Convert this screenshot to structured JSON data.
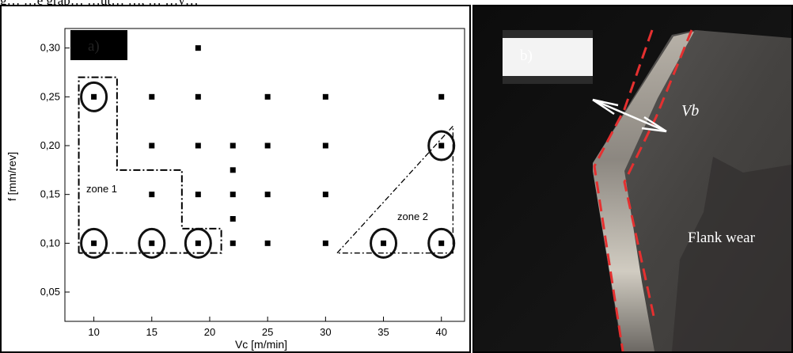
{
  "caption_fragment": "g… …e grap… …ut… …, … …y…",
  "panel_a": {
    "tag": "a)",
    "zone1_label": "zone 1",
    "zone2_label": "zone 2"
  },
  "panel_b": {
    "tag": "b)",
    "vb_label": "Vb",
    "flank_label": "Flank wear"
  },
  "chart_data": {
    "type": "scatter",
    "xlabel": "Vc [m/min]",
    "ylabel": "f [mm/rev]",
    "xlim": [
      7.5,
      42
    ],
    "ylim": [
      0.02,
      0.32
    ],
    "xticks": [
      10,
      15,
      20,
      25,
      30,
      35,
      40
    ],
    "xtick_labels": [
      "10",
      "15",
      "20",
      "25",
      "30",
      "35",
      "40"
    ],
    "yticks": [
      0.05,
      0.1,
      0.15,
      0.2,
      0.25,
      0.3
    ],
    "ytick_labels": [
      "0,05",
      "0,10",
      "0,15",
      "0,20",
      "0,25",
      "0,30"
    ],
    "grid": false,
    "points": [
      {
        "x": 10,
        "y": 0.25
      },
      {
        "x": 10,
        "y": 0.1
      },
      {
        "x": 15,
        "y": 0.25
      },
      {
        "x": 15,
        "y": 0.2
      },
      {
        "x": 15,
        "y": 0.15
      },
      {
        "x": 15,
        "y": 0.1
      },
      {
        "x": 19,
        "y": 0.3
      },
      {
        "x": 19,
        "y": 0.25
      },
      {
        "x": 19,
        "y": 0.2
      },
      {
        "x": 19,
        "y": 0.15
      },
      {
        "x": 19,
        "y": 0.1
      },
      {
        "x": 22,
        "y": 0.2
      },
      {
        "x": 22,
        "y": 0.175
      },
      {
        "x": 22,
        "y": 0.15
      },
      {
        "x": 22,
        "y": 0.125
      },
      {
        "x": 22,
        "y": 0.1
      },
      {
        "x": 25,
        "y": 0.25
      },
      {
        "x": 25,
        "y": 0.2
      },
      {
        "x": 25,
        "y": 0.15
      },
      {
        "x": 25,
        "y": 0.1
      },
      {
        "x": 30,
        "y": 0.25
      },
      {
        "x": 30,
        "y": 0.2
      },
      {
        "x": 30,
        "y": 0.15
      },
      {
        "x": 30,
        "y": 0.1
      },
      {
        "x": 35,
        "y": 0.1
      },
      {
        "x": 40,
        "y": 0.25
      },
      {
        "x": 40,
        "y": 0.2
      },
      {
        "x": 40,
        "y": 0.1
      }
    ],
    "circled_points": [
      {
        "x": 10,
        "y": 0.25
      },
      {
        "x": 10,
        "y": 0.1
      },
      {
        "x": 15,
        "y": 0.1
      },
      {
        "x": 19,
        "y": 0.1
      },
      {
        "x": 35,
        "y": 0.1
      },
      {
        "x": 40,
        "y": 0.1
      },
      {
        "x": 40,
        "y": 0.2
      }
    ],
    "zone1_boundary": [
      [
        8.7,
        0.09
      ],
      [
        8.7,
        0.27
      ],
      [
        12,
        0.27
      ],
      [
        12,
        0.175
      ],
      [
        17.6,
        0.175
      ],
      [
        17.6,
        0.115
      ],
      [
        21,
        0.115
      ],
      [
        21,
        0.09
      ],
      [
        8.7,
        0.09
      ]
    ],
    "zone2_boundary": [
      [
        31,
        0.09
      ],
      [
        41,
        0.22
      ],
      [
        41,
        0.09
      ],
      [
        31,
        0.09
      ]
    ]
  }
}
